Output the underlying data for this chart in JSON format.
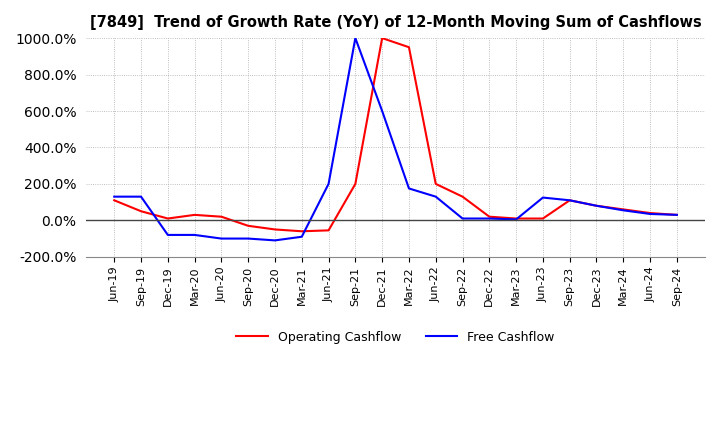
{
  "title": "[7849]  Trend of Growth Rate (YoY) of 12-Month Moving Sum of Cashflows",
  "ylim": [
    -200,
    1000
  ],
  "yticks": [
    -200,
    0,
    200,
    400,
    600,
    800,
    1000
  ],
  "background_color": "#ffffff",
  "grid_color": "#aaaaaa",
  "operating_color": "#ff0000",
  "free_color": "#0000ff",
  "x_labels": [
    "Jun-19",
    "Sep-19",
    "Dec-19",
    "Mar-20",
    "Jun-20",
    "Sep-20",
    "Dec-20",
    "Mar-21",
    "Jun-21",
    "Sep-21",
    "Dec-21",
    "Mar-22",
    "Jun-22",
    "Sep-22",
    "Dec-22",
    "Mar-23",
    "Jun-23",
    "Sep-23",
    "Dec-23",
    "Mar-24",
    "Jun-24",
    "Sep-24"
  ],
  "operating_cashflow": [
    110,
    50,
    10,
    30,
    20,
    -30,
    -50,
    -60,
    -55,
    200,
    1000,
    950,
    200,
    130,
    20,
    10,
    10,
    110,
    80,
    60,
    40,
    30
  ],
  "free_cashflow": [
    130,
    130,
    -80,
    -80,
    -100,
    -100,
    -110,
    -90,
    200,
    1000,
    600,
    175,
    130,
    10,
    10,
    5,
    125,
    110,
    80,
    55,
    35,
    30
  ]
}
